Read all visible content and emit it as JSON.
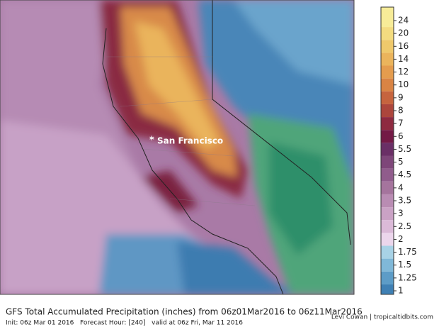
{
  "map": {
    "marker": "*",
    "place": "San Francisco"
  },
  "colorbar": {
    "levels": [
      24,
      20,
      16,
      14,
      12,
      10,
      9,
      8,
      7,
      6,
      5.5,
      5,
      4.5,
      4,
      3.5,
      3,
      2.5,
      2,
      1.75,
      1.5,
      1.25,
      1
    ],
    "colors": [
      "#f7ec98",
      "#f3dc80",
      "#efc96c",
      "#ebb45c",
      "#e49c4e",
      "#d98444",
      "#c6643e",
      "#ac463c",
      "#8e2a40",
      "#731a46",
      "#6a2f66",
      "#7e4679",
      "#905c8c",
      "#a5749d",
      "#b98cb3",
      "#caa2c5",
      "#dbbad8",
      "#ecd6ec",
      "#a8d2e6",
      "#80b8d8",
      "#5d9cc7",
      "#3f80b4"
    ]
  },
  "footer": {
    "title": "GFS Total Accumulated Precipitation (inches) from 06z01Mar2016 to 06z11Mar2016",
    "init": "Init: 06z Mar 01 2016   Forecast Hour: [240]   valid at 06z Fri, Mar 11 2016",
    "credit": "Levi Cowan | tropicaltidbits.com"
  }
}
